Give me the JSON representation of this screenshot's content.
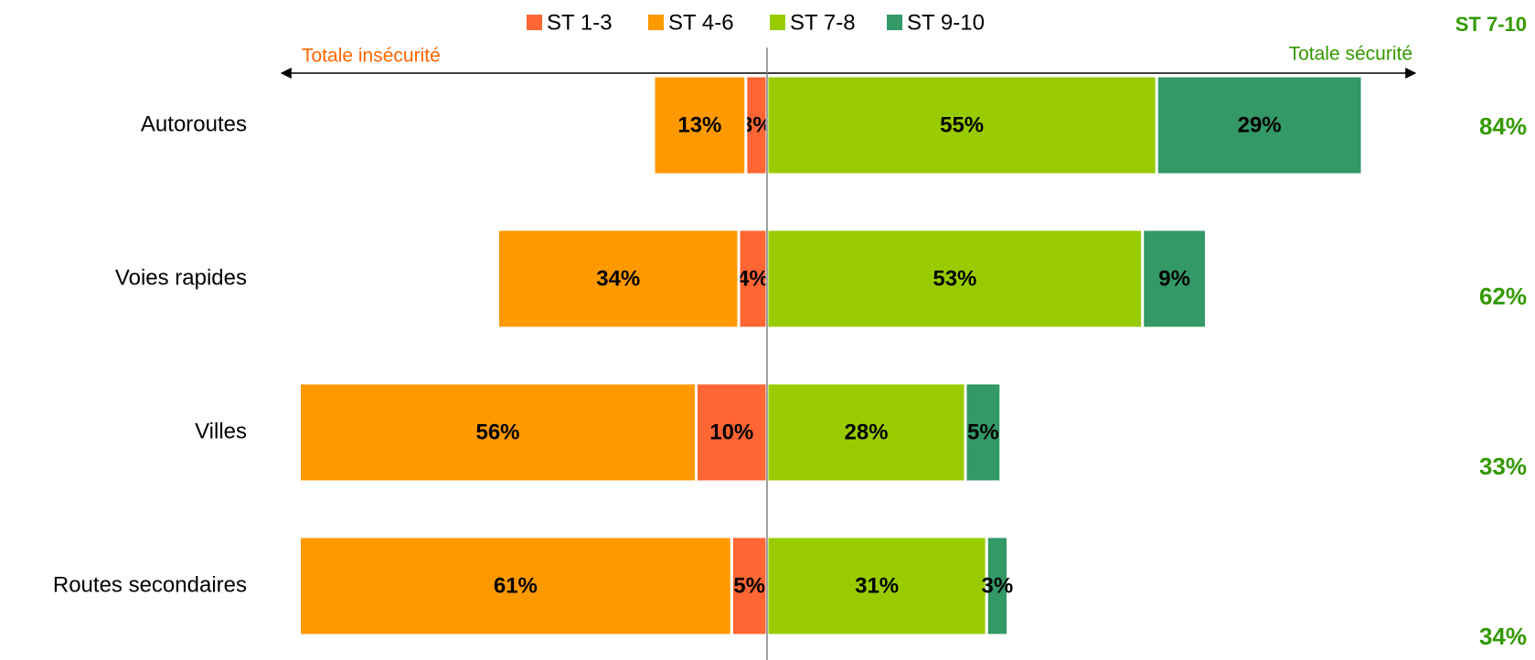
{
  "chart_data": {
    "type": "diverging_bar",
    "categories": [
      "Autoroutes",
      "Voies rapides",
      "Villes",
      "Routes secondaires"
    ],
    "left_label": "Totale insécurité",
    "right_label": "Totale sécurité",
    "series": [
      {
        "name": "ST 1-3",
        "color": "#ff6633",
        "side": "left",
        "values": [
          3,
          4,
          10,
          5
        ],
        "value_labels": [
          "3%",
          "4%",
          "10%",
          "5%"
        ]
      },
      {
        "name": "ST 4-6",
        "color": "#ff9900",
        "side": "left",
        "values": [
          13,
          34,
          56,
          61
        ],
        "value_labels": [
          "13%",
          "34%",
          "56%",
          "61%"
        ]
      },
      {
        "name": "ST 7-8",
        "color": "#99cc00",
        "side": "right",
        "values": [
          55,
          53,
          28,
          31
        ],
        "value_labels": [
          "55%",
          "53%",
          "28%",
          "31%"
        ]
      },
      {
        "name": "ST 9-10",
        "color": "#339966",
        "side": "right",
        "values": [
          29,
          9,
          5,
          3
        ],
        "value_labels": [
          "29%",
          "9%",
          "5%",
          "3%"
        ]
      }
    ],
    "totals": {
      "title": "ST 7-10",
      "color": "#339900",
      "values": [
        84,
        62,
        33,
        34
      ],
      "value_labels": [
        "84%",
        "62%",
        "33%",
        "34%"
      ]
    }
  }
}
